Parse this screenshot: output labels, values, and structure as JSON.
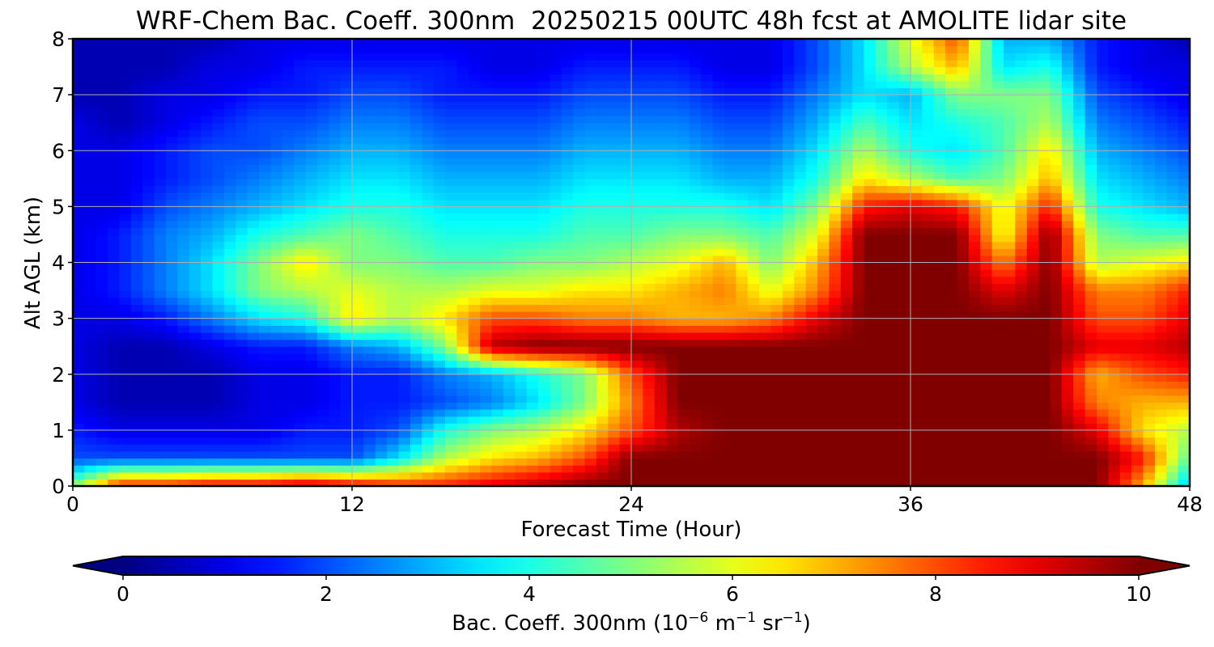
{
  "chart_data": {
    "type": "heatmap",
    "title": "WRF-Chem Bac. Coeff. 300nm  20250215 00UTC 48h fcst at AMOLITE lidar site",
    "xlabel": "Forecast Time (Hour)",
    "ylabel": "Alt AGL (km)",
    "xlim": [
      0,
      48
    ],
    "ylim": [
      0,
      8
    ],
    "xticks": [
      0,
      12,
      24,
      36,
      48
    ],
    "yticks": [
      0,
      1,
      2,
      3,
      4,
      5,
      6,
      7,
      8
    ],
    "grid": true,
    "colormap": "jet",
    "colorbar": {
      "label_main": "Bac. Coeff. 300nm  (10",
      "label_exp1": "−6",
      "label_mid": " m",
      "label_exp2": "−1",
      "label_mid2": " sr",
      "label_exp3": "−1",
      "label_end": ")",
      "range": [
        0,
        10
      ],
      "ticks": [
        0,
        2,
        4,
        6,
        8,
        10
      ],
      "extend": "both",
      "orientation": "horizontal"
    },
    "x": [
      0,
      2,
      4,
      6,
      8,
      10,
      12,
      14,
      16,
      18,
      20,
      22,
      24,
      26,
      28,
      30,
      32,
      34,
      36,
      38,
      40,
      42,
      44,
      46,
      48
    ],
    "y": [
      0,
      0.5,
      1,
      1.5,
      2,
      2.5,
      3,
      3.5,
      4,
      4.5,
      5,
      5.5,
      6,
      6.5,
      7,
      7.5,
      8
    ],
    "values": [
      [
        5.0,
        8.5,
        8.5,
        9.0,
        9.0,
        9.5,
        9.0,
        8.5,
        8.5,
        9.0,
        9.5,
        10,
        10,
        10,
        10,
        10,
        10,
        10,
        10,
        10,
        10,
        10,
        10,
        7.0,
        3.0
      ],
      [
        2.0,
        2.0,
        2.0,
        2.0,
        2.0,
        2.0,
        2.0,
        3.5,
        5.5,
        6.5,
        7.0,
        8.0,
        10,
        10,
        10,
        10,
        10,
        10,
        10,
        10,
        10,
        10,
        10,
        8.5,
        4.5
      ],
      [
        1.5,
        1.0,
        1.0,
        1.0,
        1.0,
        1.5,
        1.5,
        2.0,
        4.0,
        5.0,
        5.5,
        6.5,
        8.0,
        9.5,
        10,
        10,
        10,
        10,
        10,
        10,
        10,
        10,
        9.0,
        6.5,
        5.5
      ],
      [
        1.0,
        0.5,
        0.5,
        0.5,
        1.0,
        1.0,
        1.5,
        1.5,
        2.0,
        2.5,
        3.5,
        5.0,
        7.5,
        10,
        10,
        10,
        10,
        10,
        10,
        10,
        10,
        10,
        7.5,
        7.0,
        7.0
      ],
      [
        1.0,
        0.5,
        0.5,
        0.5,
        1.0,
        1.0,
        1.5,
        1.5,
        2.5,
        3.0,
        4.0,
        5.0,
        8.0,
        10,
        10,
        10,
        10,
        10,
        10,
        10,
        10,
        10,
        7.0,
        8.0,
        8.5
      ],
      [
        1.0,
        0.5,
        0.5,
        1.0,
        1.5,
        1.5,
        2.5,
        3.0,
        5.0,
        9.5,
        10,
        10,
        10,
        10,
        10,
        10,
        10,
        10,
        10,
        10,
        10,
        10,
        9.0,
        9.0,
        9.5
      ],
      [
        1.0,
        1.0,
        1.5,
        2.5,
        3.5,
        4.0,
        6.5,
        5.5,
        6.5,
        8.0,
        8.0,
        7.5,
        7.5,
        7.0,
        7.0,
        7.5,
        9.0,
        10,
        10,
        10,
        10,
        10,
        8.0,
        8.0,
        9.0
      ],
      [
        1.0,
        1.5,
        2.5,
        3.5,
        5.0,
        5.5,
        6.0,
        5.5,
        5.5,
        6.0,
        6.0,
        6.5,
        6.5,
        7.0,
        7.5,
        6.0,
        7.5,
        10,
        10,
        10,
        9.0,
        10,
        7.5,
        7.5,
        8.5
      ],
      [
        1.0,
        1.5,
        2.5,
        3.5,
        5.0,
        6.5,
        5.0,
        5.0,
        4.5,
        4.5,
        5.0,
        5.0,
        5.5,
        6.0,
        7.0,
        5.0,
        7.0,
        10,
        10,
        10,
        7.5,
        10,
        5.5,
        6.0,
        6.5
      ],
      [
        1.0,
        1.5,
        2.5,
        3.0,
        4.0,
        4.5,
        5.0,
        4.5,
        4.0,
        4.0,
        4.0,
        4.5,
        4.5,
        5.0,
        5.0,
        4.5,
        6.0,
        10,
        10,
        10,
        6.0,
        10,
        5.0,
        4.5,
        4.5
      ],
      [
        1.0,
        1.0,
        2.0,
        2.5,
        3.0,
        3.5,
        4.0,
        4.0,
        3.5,
        3.5,
        3.5,
        4.0,
        4.0,
        4.0,
        4.0,
        3.5,
        5.0,
        8.5,
        9.0,
        8.5,
        6.0,
        8.5,
        4.0,
        3.5,
        3.0
      ],
      [
        1.0,
        1.0,
        1.5,
        2.0,
        2.5,
        3.0,
        3.5,
        3.5,
        3.0,
        3.0,
        3.0,
        3.5,
        3.5,
        3.5,
        3.0,
        3.0,
        4.0,
        6.5,
        5.5,
        4.5,
        5.0,
        7.0,
        3.5,
        3.0,
        2.5
      ],
      [
        1.0,
        1.0,
        1.5,
        2.0,
        2.0,
        2.5,
        3.0,
        3.0,
        2.5,
        2.5,
        2.5,
        3.0,
        3.0,
        3.0,
        2.5,
        2.5,
        3.5,
        5.5,
        4.0,
        3.5,
        4.5,
        6.5,
        3.0,
        2.5,
        2.0
      ],
      [
        1.0,
        0.5,
        1.0,
        1.5,
        2.0,
        2.0,
        2.5,
        2.5,
        2.0,
        2.0,
        2.0,
        2.5,
        2.5,
        2.5,
        2.0,
        2.0,
        3.0,
        4.5,
        3.5,
        4.0,
        4.5,
        5.5,
        2.5,
        2.0,
        1.5
      ],
      [
        0.5,
        0.5,
        1.0,
        1.0,
        1.5,
        1.5,
        2.0,
        2.0,
        1.5,
        1.5,
        1.5,
        2.0,
        2.0,
        2.0,
        1.5,
        1.5,
        2.5,
        3.5,
        3.0,
        5.0,
        5.0,
        5.0,
        2.0,
        1.5,
        1.0
      ],
      [
        0.5,
        0.5,
        0.5,
        1.0,
        1.0,
        1.5,
        1.5,
        1.5,
        1.5,
        1.0,
        1.0,
        1.5,
        1.5,
        1.5,
        1.0,
        1.0,
        2.0,
        3.5,
        5.5,
        7.0,
        3.5,
        4.0,
        1.5,
        1.0,
        1.0
      ],
      [
        0.5,
        0.5,
        0.5,
        0.5,
        1.0,
        1.0,
        1.0,
        1.0,
        1.0,
        1.0,
        1.0,
        1.0,
        1.0,
        1.0,
        1.0,
        1.0,
        2.0,
        3.5,
        6.0,
        8.0,
        3.0,
        3.0,
        1.5,
        1.0,
        0.5
      ]
    ]
  }
}
